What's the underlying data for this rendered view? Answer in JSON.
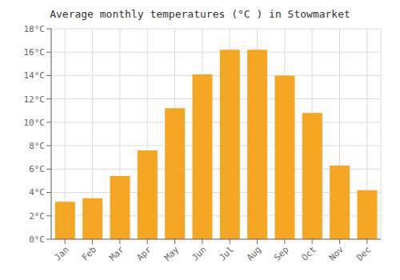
{
  "chart_data": {
    "type": "bar",
    "title": "Average monthly temperatures (°C ) in Stowmarket",
    "categories": [
      "Jan",
      "Feb",
      "Mar",
      "Apr",
      "May",
      "Jun",
      "Jul",
      "Aug",
      "Sep",
      "Oct",
      "Nov",
      "Dec"
    ],
    "values": [
      3.2,
      3.5,
      5.4,
      7.6,
      11.2,
      14.1,
      16.2,
      16.2,
      14.0,
      10.8,
      6.3,
      4.2
    ],
    "color": "#F5A623",
    "ylim": [
      0,
      18
    ],
    "yticks": [
      {
        "value": 0,
        "label": "0°C"
      },
      {
        "value": 2,
        "label": "2°C"
      },
      {
        "value": 4,
        "label": "4°C"
      },
      {
        "value": 6,
        "label": "6°C"
      },
      {
        "value": 8,
        "label": "8°C"
      },
      {
        "value": 10,
        "label": "10°C"
      },
      {
        "value": 12,
        "label": "12°C"
      },
      {
        "value": 14,
        "label": "14°C"
      },
      {
        "value": 16,
        "label": "16°C"
      },
      {
        "value": 18,
        "label": "18°C"
      }
    ],
    "grid": true
  }
}
